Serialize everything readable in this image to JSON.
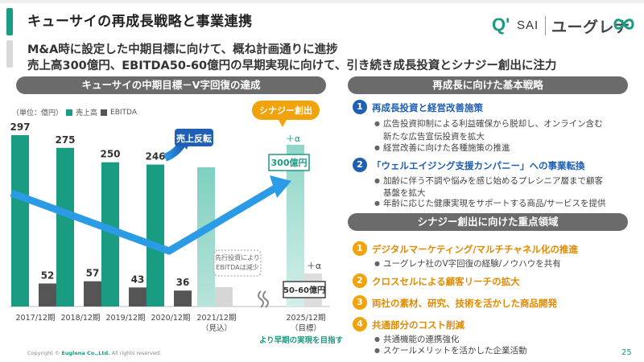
{
  "header": {
    "title": "キューサイの再成長戦略と事業連携",
    "sub1": "M&A時に設定した中期目標に向けて、概ね計画通りに進捗",
    "sub2": "売上高300億円、EBITDA50-60億円の早期実現に向けて、引き続き成長投資とシナジー創出に注力",
    "logo_q": "Q'",
    "logo_sai": "SAI",
    "logo_euglena": "ユーグレナ"
  },
  "left_section": {
    "header": "キューサイの中期目標－V字回復の達成",
    "unit": "（単位：億円）",
    "legend_sales": "売上高",
    "legend_ebitda": "EBITDA"
  },
  "colors": {
    "teal": "#1a9c82",
    "teal_light": "#7fd0c0",
    "gray_dark": "#555555",
    "gray_light": "#c8c8c8",
    "arrow_blue": "#2b9be6",
    "navy": "#1f5fb4",
    "orange": "#f2a20a"
  },
  "chart_data": {
    "type": "bar",
    "categories": [
      "2017/12期",
      "2018/12期",
      "2019/12期",
      "2020/12期",
      "2021/12期",
      "2025/12期"
    ],
    "category_notes": [
      "",
      "",
      "",
      "",
      "（見込）",
      "（目標）"
    ],
    "series": [
      {
        "name": "売上高",
        "values": [
          297,
          275,
          250,
          246,
          null,
          null
        ]
      },
      {
        "name": "EBITDA",
        "values": [
          52,
          57,
          43,
          36,
          null,
          null
        ]
      }
    ],
    "ylim": [
      0,
      310
    ],
    "callout_sales_reversal": "売上反転",
    "callout_synergy": "シナジー創出",
    "plus_alpha_sales": "＋α",
    "plus_alpha_ebitda": "＋α",
    "target_sales_label": "300億円",
    "target_ebitda_label": "50-60億円",
    "note_2021_line1": "先行投資により",
    "note_2021_line2": "EBITDAは減少",
    "bottom_note": "より早期の実現を目指す"
  },
  "right_section": {
    "header1": "再成長に向けた基本戦略",
    "header2": "シナジー創出に向けた重点領域",
    "strategies": [
      {
        "num": "1",
        "title": "再成長投資と経営改善施策",
        "bullets": [
          "広告投資抑制による利益確保から脱却し、オンライン含む",
          "経営改善に向けた各種施策の推進"
        ],
        "continuation": "新たな広告宣伝投資を拡大"
      },
      {
        "num": "2",
        "title": "「ウェルエイジング支援カンパニー」への事業転換",
        "bullets": [
          "加齢に伴う不調や悩みを感じ始めるプレシニア層まで顧客",
          "年齢に応じた健康実現をサポートする商品/サービスを提供"
        ],
        "continuation": "基盤を拡大"
      }
    ],
    "focus_areas": [
      {
        "num": "1",
        "title": "デジタルマーケティング/マルチチャネル化の推進",
        "bullets": [
          "ユーグレナ社のV字回復の経験/ノウハウを共有"
        ]
      },
      {
        "num": "2",
        "title": "クロスセルによる顧客リーチの拡大",
        "bullets": []
      },
      {
        "num": "3",
        "title": "両社の素材、研究、技術を活かした商品開発",
        "bullets": []
      },
      {
        "num": "4",
        "title": "共通部分のコスト削減",
        "bullets": [
          "共通機能の連携強化",
          "スケールメリットを活かした企業活動"
        ]
      }
    ]
  },
  "footer": {
    "copyright_prefix": "Copyright ©",
    "company": "Euglena Co.,Ltd.",
    "rights": "All rights reserved.",
    "page": "25"
  }
}
